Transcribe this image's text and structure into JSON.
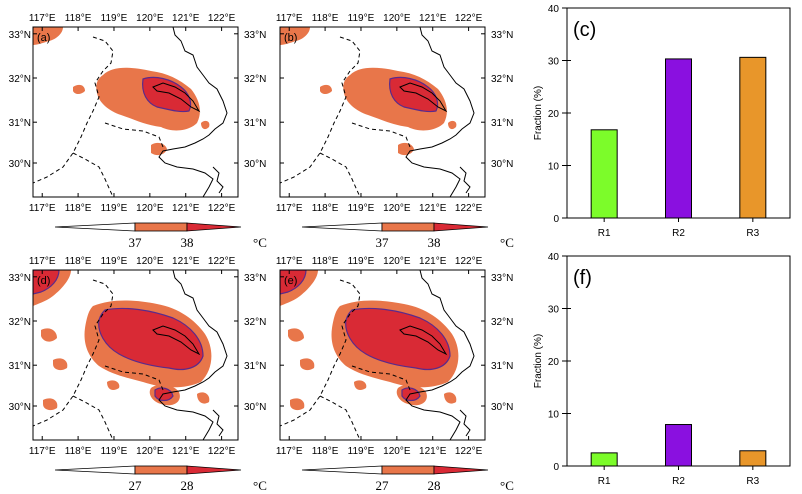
{
  "figure": {
    "map_panels": [
      {
        "label": "(a)",
        "levels": [
          "37",
          "38"
        ],
        "unit": "°C"
      },
      {
        "label": "(b)",
        "levels": [
          "37",
          "38"
        ],
        "unit": "°C"
      },
      {
        "label": "(d)",
        "levels": [
          "27",
          "28"
        ],
        "unit": "°C"
      },
      {
        "label": "(e)",
        "levels": [
          "27",
          "28"
        ],
        "unit": "°C"
      }
    ],
    "lon_ticks": [
      "117°E",
      "118°E",
      "119°E",
      "120°E",
      "121°E",
      "122°E"
    ],
    "lat_ticks": [
      "33°N",
      "32°N",
      "31°N",
      "30°N"
    ],
    "colors": {
      "low_shade": "#e8764a",
      "high_shade": "#d92a35",
      "contour": "#5a2a8c",
      "r1": "#7cfc2a",
      "r2": "#8a10e0",
      "r3": "#e8962a"
    }
  },
  "chart_data": [
    {
      "type": "bar",
      "panel": "(c)",
      "categories": [
        "R1",
        "R2",
        "R3"
      ],
      "values": [
        16.8,
        30.3,
        30.6
      ],
      "ylabel": "Fraction (%)",
      "ylim": [
        0,
        40
      ],
      "yticks": [
        "0",
        "10",
        "20",
        "30",
        "40"
      ]
    },
    {
      "type": "bar",
      "panel": "(f)",
      "categories": [
        "R1",
        "R2",
        "R3"
      ],
      "values": [
        2.5,
        7.9,
        2.9
      ],
      "ylabel": "Fraction (%)",
      "ylim": [
        0,
        40
      ],
      "yticks": [
        "0",
        "10",
        "20",
        "30",
        "40"
      ]
    }
  ]
}
